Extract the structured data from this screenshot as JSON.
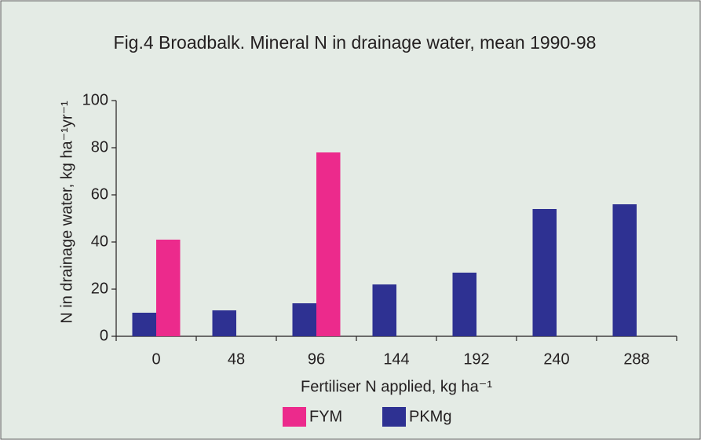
{
  "chart_data": {
    "type": "bar",
    "title": "Fig.4 Broadbalk. Mineral N in drainage water, mean 1990-98",
    "x_label": "Fertiliser N applied, kg ha⁻¹",
    "y_label": "N in drainage water, kg ha⁻¹yr⁻¹",
    "categories": [
      "0",
      "48",
      "96",
      "144",
      "192",
      "240",
      "288"
    ],
    "series": [
      {
        "name": "PKMg",
        "color": "#2e3192",
        "values": [
          10,
          11,
          14,
          22,
          27,
          54,
          56
        ]
      },
      {
        "name": "FYM",
        "color": "#ec2a8c",
        "values": [
          41,
          null,
          78,
          null,
          null,
          null,
          null
        ]
      }
    ],
    "ylim": [
      0,
      100
    ],
    "yticks": [
      0,
      20,
      40,
      60,
      80,
      100
    ],
    "grid": false
  }
}
